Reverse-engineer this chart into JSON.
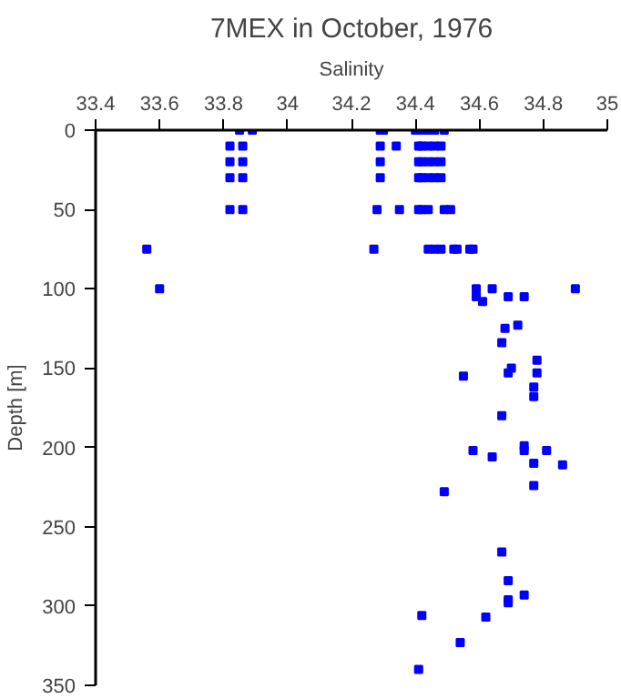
{
  "chart_data": {
    "type": "scatter",
    "title": "7MEX in October, 1976",
    "xlabel": "Salinity",
    "ylabel": "Depth [m]",
    "xlim": [
      33.4,
      35
    ],
    "xticks": [
      33.4,
      33.6,
      33.8,
      34,
      34.2,
      34.4,
      34.6,
      34.8,
      35
    ],
    "ylim": [
      350,
      0
    ],
    "yticks": [
      0,
      50,
      100,
      150,
      200,
      250,
      300,
      350
    ],
    "grid": false,
    "marker": "square",
    "series": [
      {
        "color": "#0000ff",
        "x": [
          33.85,
          33.89,
          34.29,
          34.3,
          34.4,
          34.42,
          34.44,
          34.46,
          34.49,
          33.82,
          33.86,
          34.29,
          34.34,
          34.41,
          34.42,
          34.44,
          34.46,
          34.48,
          33.82,
          33.86,
          34.29,
          34.41,
          34.42,
          34.44,
          34.46,
          34.48,
          33.82,
          33.86,
          34.29,
          34.41,
          34.42,
          34.44,
          34.46,
          34.48,
          33.82,
          33.86,
          34.28,
          34.35,
          34.41,
          34.42,
          34.44,
          34.49,
          34.51,
          33.56,
          34.27,
          34.44,
          34.46,
          34.48,
          34.52,
          34.53,
          34.57,
          34.58,
          33.6,
          34.59,
          34.59,
          34.61,
          34.64,
          34.69,
          34.74,
          34.9,
          34.68,
          34.72,
          34.67,
          34.78,
          34.7,
          34.69,
          34.78,
          34.55,
          34.77,
          34.77,
          34.67,
          34.58,
          34.74,
          34.74,
          34.81,
          34.64,
          34.77,
          34.86,
          34.77,
          34.49,
          34.67,
          34.69,
          34.69,
          34.69,
          34.74,
          34.42,
          34.62,
          34.54,
          34.41
        ],
        "values": [
          0,
          0,
          0,
          0,
          0,
          0,
          0,
          0,
          0,
          10,
          10,
          10,
          10,
          10,
          10,
          10,
          10,
          10,
          20,
          20,
          20,
          20,
          20,
          20,
          20,
          20,
          30,
          30,
          30,
          30,
          30,
          30,
          30,
          30,
          50,
          50,
          50,
          50,
          50,
          50,
          50,
          50,
          50,
          75,
          75,
          75,
          75,
          75,
          75,
          75,
          75,
          75,
          100,
          100,
          105,
          108,
          100,
          105,
          105,
          100,
          125,
          123,
          134,
          145,
          150,
          153,
          153,
          155,
          162,
          168,
          180,
          202,
          199,
          202,
          202,
          206,
          210,
          211,
          224,
          228,
          266,
          284,
          296,
          298,
          293,
          306,
          307,
          323,
          340
        ]
      }
    ]
  }
}
